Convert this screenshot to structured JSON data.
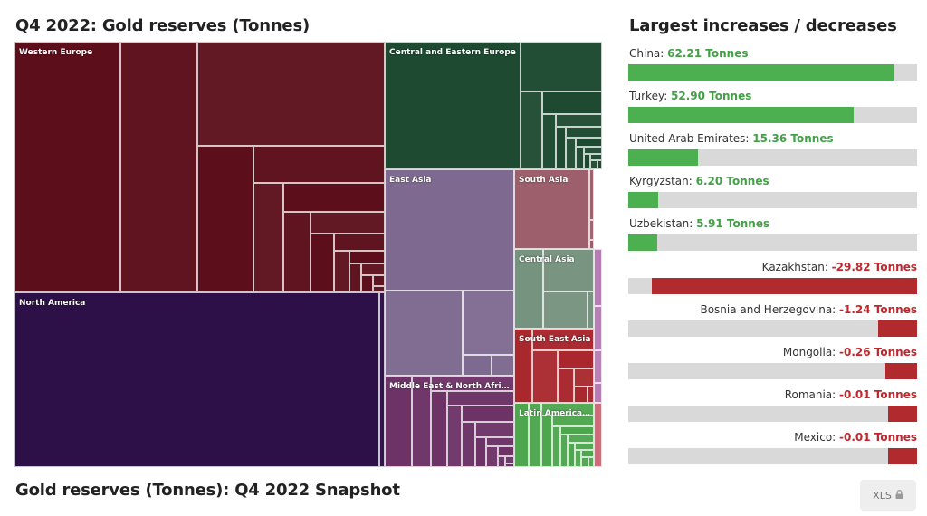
{
  "page": {
    "treemap_title": "Q4 2022: Gold reserves (Tonnes)",
    "bars_title": "Largest increases / decreases",
    "footer_title": "Gold reserves (Tonnes): Q4 2022 Snapshot",
    "export_label": "XLS",
    "export_icon": "lock-icon"
  },
  "colors": {
    "positive_bar": "#4caf50",
    "positive_text": "#43a047",
    "negative_bar": "#b02a2e",
    "negative_text": "#c0272d",
    "track": "#d9d9d9"
  },
  "chart_data": [
    {
      "type": "treemap",
      "title": "Q4 2022: Gold reserves (Tonnes)",
      "unit": "Tonnes",
      "regions": [
        {
          "name": "Western Europe",
          "color": "#5c0f1a",
          "values": [
            3355,
            2448,
            2452,
            1040,
            612,
            405,
            380,
            280,
            198,
            173,
            110,
            80,
            60,
            44,
            35,
            25,
            15,
            10
          ]
        },
        {
          "name": "North America",
          "color": "#2e1049",
          "values": [
            8133,
            121
          ]
        },
        {
          "name": "Central and Eastern Europe",
          "color": "#1f4a32",
          "values": [
            2298,
            542,
            229,
            179,
            102,
            78,
            56,
            52,
            40,
            30,
            25,
            18,
            14,
            10,
            8,
            6
          ]
        },
        {
          "name": "East Asia",
          "color": "#7e6a90",
          "values": [
            2011,
            846,
            424,
            79,
            62
          ]
        },
        {
          "name": "South Asia",
          "color": "#9c5f6b",
          "values": [
            787,
            33,
            13,
            6
          ]
        },
        {
          "name": "Central Asia",
          "color": "#76937f",
          "values": [
            350,
            328,
            257,
            35
          ]
        },
        {
          "name": "South East Asia",
          "color": "#a8282e",
          "values": [
            161,
            154,
            154,
            79,
            66,
            42,
            25,
            12
          ]
        },
        {
          "name": "Middle East & North Africa",
          "color": "#6d3367",
          "values": [
            323,
            230,
            173,
            168,
            127,
            117,
            107,
            80,
            79,
            43,
            35,
            30,
            22,
            10,
            8,
            5
          ]
        },
        {
          "name": "Latin America ...",
          "color": "#4ea64f",
          "values": [
            130,
            120,
            95,
            80,
            60,
            45,
            40,
            35,
            30,
            25,
            20,
            15,
            12,
            10,
            8
          ]
        },
        {
          "name": "",
          "color": "#b87bb6",
          "values": [
            70,
            55,
            40,
            25
          ]
        },
        {
          "name": "",
          "color": "#d06b7a",
          "values": [
            130
          ]
        }
      ]
    },
    {
      "type": "bar",
      "title": "Largest increases / decreases",
      "unit": "Tonnes",
      "categories": [
        "China",
        "Turkey",
        "United Arab Emirates",
        "Kyrgyzstan",
        "Uzbekistan",
        "Kazakhstan",
        "Bosnia and Herzegovina",
        "Mongolia",
        "Romania",
        "Mexico"
      ],
      "value_labels": [
        "62.21 Tonnes",
        "52.90 Tonnes",
        "15.36 Tonnes",
        "6.20 Tonnes",
        "5.91 Tonnes",
        "-29.82 Tonnes",
        "-1.24 Tonnes",
        "-0.26 Tonnes",
        "-0.01 Tonnes",
        "-0.01 Tonnes"
      ],
      "values": [
        62.21,
        52.9,
        15.36,
        6.2,
        5.91,
        -29.82,
        -1.24,
        -0.26,
        -0.01,
        -0.01
      ],
      "bar_fraction": [
        0.92,
        0.78,
        0.24,
        0.105,
        0.1,
        0.92,
        0.135,
        0.11,
        0.1,
        0.1
      ]
    }
  ]
}
